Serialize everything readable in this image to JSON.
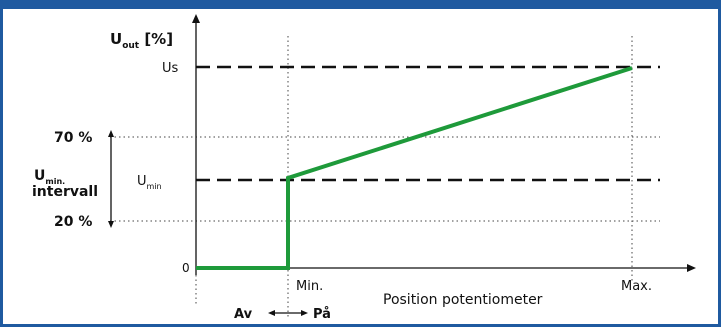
{
  "header": {
    "accent_color": "#1f5aa0"
  },
  "diagram": {
    "y_axis_label": {
      "main": "U",
      "sub": "out",
      "unit": " [%]"
    },
    "x_axis_label": "Position potentiometer",
    "levels": {
      "us": "Us",
      "umin_main": "U",
      "umin_sub": "min",
      "pct70": "70 %",
      "pct20": "20 %",
      "zero": "0"
    },
    "interval_label": {
      "main": "U",
      "sub": "min.",
      "line2": "intervall"
    },
    "x_ticks": {
      "min": "Min.",
      "max": "Max."
    },
    "switch": {
      "off": "Av",
      "on": "På",
      "arrow": "⟷"
    },
    "line_color": "#1e9a3a"
  }
}
